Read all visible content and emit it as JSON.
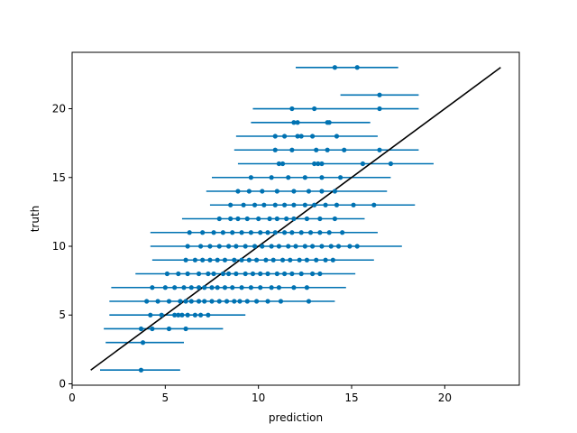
{
  "chart_data": {
    "type": "scatter",
    "title": "",
    "xlabel": "prediction",
    "ylabel": "truth",
    "xlim": [
      0,
      24
    ],
    "ylim": [
      -0.1,
      24.1
    ],
    "xticks": [
      0,
      5,
      10,
      15,
      20
    ],
    "yticks": [
      0,
      5,
      10,
      15,
      20
    ],
    "grid": false,
    "colors": {
      "points": "#0072B2",
      "reference_line": "#000000"
    },
    "reference_line": {
      "from": [
        1,
        1
      ],
      "to": [
        23,
        23
      ]
    },
    "rows": [
      {
        "y": 1,
        "xmin": 1.5,
        "xmax": 5.8,
        "points": [
          3.7
        ]
      },
      {
        "y": 3,
        "xmin": 1.8,
        "xmax": 6.0,
        "points": [
          3.8
        ]
      },
      {
        "y": 4,
        "xmin": 1.7,
        "xmax": 8.1,
        "points": [
          3.7,
          4.3,
          5.2,
          6.1
        ]
      },
      {
        "y": 5,
        "xmin": 2.0,
        "xmax": 9.3,
        "points": [
          4.2,
          4.8,
          5.5,
          5.7,
          5.9,
          6.2,
          6.6,
          6.9,
          7.3
        ]
      },
      {
        "y": 6,
        "xmin": 2.0,
        "xmax": 14.1,
        "points": [
          4.0,
          4.6,
          5.2,
          5.8,
          6.1,
          6.4,
          6.8,
          7.1,
          7.5,
          7.9,
          8.3,
          8.7,
          9.0,
          9.4,
          9.9,
          10.5,
          11.2,
          12.7
        ]
      },
      {
        "y": 7,
        "xmin": 2.1,
        "xmax": 14.7,
        "points": [
          4.3,
          5.0,
          5.5,
          6.0,
          6.4,
          6.8,
          7.1,
          7.5,
          7.8,
          8.2,
          8.6,
          9.1,
          9.6,
          10.1,
          10.7,
          11.1,
          11.9,
          12.6
        ]
      },
      {
        "y": 8,
        "xmin": 3.4,
        "xmax": 15.2,
        "points": [
          5.1,
          5.7,
          6.2,
          6.8,
          7.3,
          7.6,
          8.1,
          8.4,
          8.8,
          9.3,
          9.7,
          10.1,
          10.5,
          11.0,
          11.4,
          11.8,
          12.3,
          12.9,
          13.3
        ]
      },
      {
        "y": 9,
        "xmin": 4.3,
        "xmax": 16.2,
        "points": [
          6.1,
          6.6,
          7.0,
          7.4,
          7.8,
          8.2,
          8.7,
          9.1,
          9.5,
          9.9,
          10.4,
          10.8,
          11.3,
          11.7,
          12.2,
          12.6,
          13.1,
          13.6,
          14.0
        ]
      },
      {
        "y": 10,
        "xmin": 4.2,
        "xmax": 17.7,
        "points": [
          6.2,
          6.9,
          7.4,
          7.9,
          8.4,
          8.8,
          9.3,
          9.8,
          10.2,
          10.7,
          11.1,
          11.6,
          12.0,
          12.5,
          12.9,
          13.4,
          13.9,
          14.3,
          14.9,
          15.3
        ]
      },
      {
        "y": 11,
        "xmin": 4.2,
        "xmax": 16.4,
        "points": [
          6.3,
          7.0,
          7.6,
          8.1,
          8.6,
          9.1,
          9.6,
          10.1,
          10.5,
          10.9,
          11.4,
          11.8,
          12.3,
          12.8,
          13.3,
          13.8,
          14.5
        ]
      },
      {
        "y": 12,
        "xmin": 5.9,
        "xmax": 15.7,
        "points": [
          7.9,
          8.5,
          8.9,
          9.4,
          10.0,
          10.6,
          11.0,
          11.5,
          11.9,
          12.6,
          13.3,
          14.1
        ]
      },
      {
        "y": 13,
        "xmin": 7.4,
        "xmax": 18.4,
        "points": [
          8.5,
          9.2,
          9.8,
          10.3,
          10.9,
          11.4,
          11.9,
          12.5,
          13.0,
          13.6,
          14.2,
          15.1,
          16.2
        ]
      },
      {
        "y": 14,
        "xmin": 7.2,
        "xmax": 16.9,
        "points": [
          8.9,
          9.5,
          10.2,
          11.0,
          11.9,
          12.7,
          13.4,
          14.1
        ]
      },
      {
        "y": 15,
        "xmin": 7.5,
        "xmax": 17.1,
        "points": [
          9.6,
          10.7,
          11.6,
          12.5,
          13.4,
          14.4
        ]
      },
      {
        "y": 16,
        "xmin": 8.9,
        "xmax": 19.4,
        "points": [
          11.1,
          11.3,
          13.0,
          13.2,
          13.4,
          15.6,
          17.1
        ]
      },
      {
        "y": 17,
        "xmin": 8.7,
        "xmax": 18.6,
        "points": [
          10.9,
          11.8,
          13.1,
          13.7,
          14.6,
          16.5
        ]
      },
      {
        "y": 18,
        "xmin": 8.8,
        "xmax": 16.4,
        "points": [
          10.9,
          11.4,
          12.1,
          12.3,
          12.9,
          14.2
        ]
      },
      {
        "y": 19,
        "xmin": 9.6,
        "xmax": 16.0,
        "points": [
          11.9,
          12.1,
          13.7,
          13.8
        ]
      },
      {
        "y": 20,
        "xmin": 9.7,
        "xmax": 18.6,
        "points": [
          11.8,
          13.0,
          16.5
        ]
      },
      {
        "y": 21,
        "xmin": 14.4,
        "xmax": 18.6,
        "points": [
          16.5
        ]
      },
      {
        "y": 23,
        "xmin": 12.0,
        "xmax": 17.5,
        "points": [
          14.1,
          15.3
        ]
      }
    ]
  }
}
